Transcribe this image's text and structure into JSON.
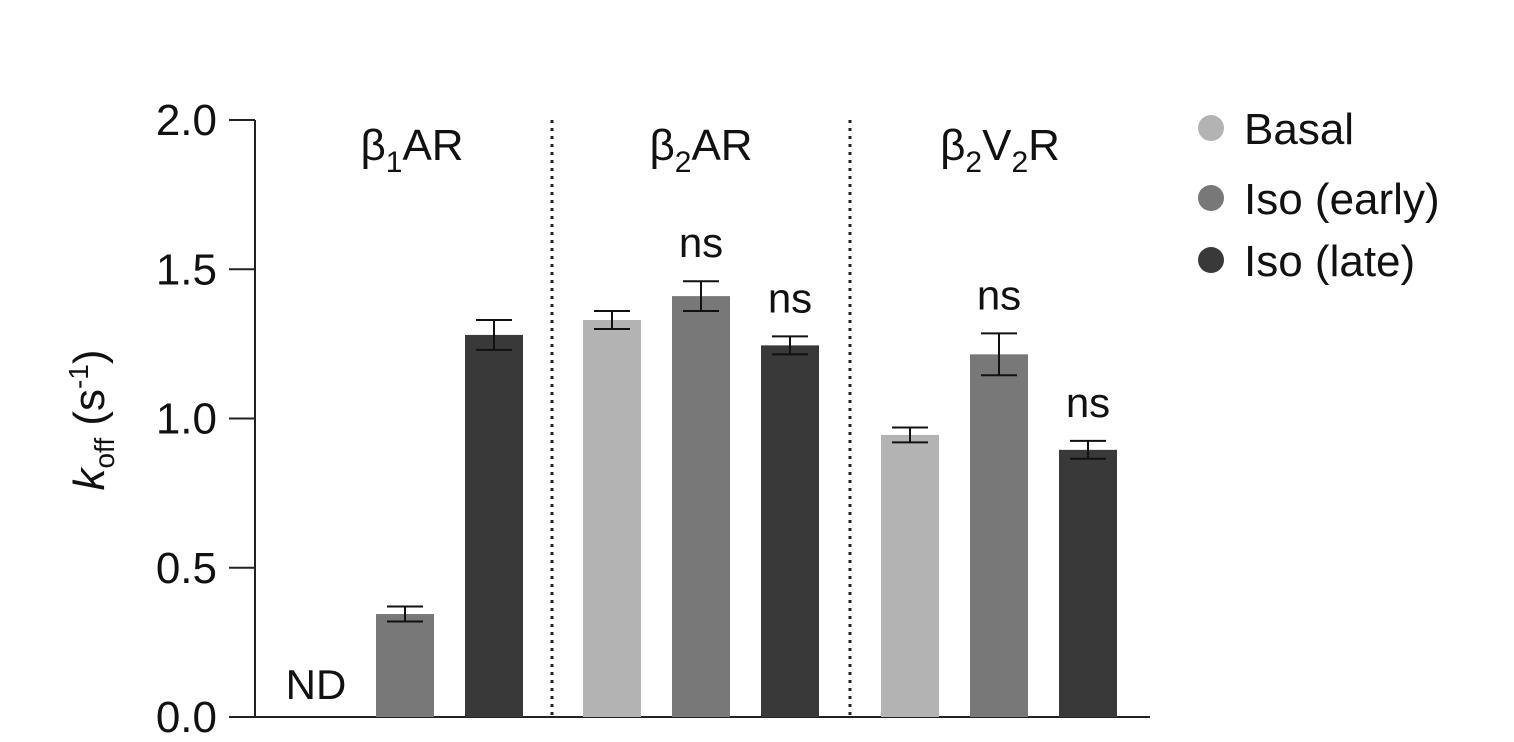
{
  "chart_data": {
    "type": "bar",
    "ylabel": {
      "main": "k",
      "sub": "off",
      "unit_open": " (s",
      "unit_sup": "-1",
      "unit_close": ")"
    },
    "ylim": [
      0,
      2.0
    ],
    "yticks": [
      "0.0",
      "0.5",
      "1.0",
      "1.5",
      "2.0"
    ],
    "groups": [
      {
        "label_pre": "β",
        "sub1": "1",
        "mid": "AR",
        "sub2": "",
        "post": ""
      },
      {
        "label_pre": "β",
        "sub1": "2",
        "mid": "AR",
        "sub2": "",
        "post": ""
      },
      {
        "label_pre": "β",
        "sub1": "2",
        "mid": "V",
        "sub2": "2",
        "post": "R"
      }
    ],
    "series": [
      {
        "name": "Basal",
        "color": "#b3b3b3",
        "values": [
          null,
          1.33,
          0.945
        ],
        "errors": [
          null,
          0.03,
          0.025
        ],
        "annotations": [
          "ND",
          "",
          ""
        ]
      },
      {
        "name": "Iso (early)",
        "color": "#787878",
        "values": [
          0.345,
          1.41,
          1.215
        ],
        "errors": [
          0.025,
          0.05,
          0.07
        ],
        "annotations": [
          "",
          "ns",
          "ns"
        ]
      },
      {
        "name": "Iso (late)",
        "color": "#393939",
        "values": [
          1.28,
          1.245,
          0.895
        ],
        "errors": [
          0.05,
          0.03,
          0.03
        ],
        "annotations": [
          "",
          "ns",
          "ns"
        ]
      }
    ],
    "legend_position": "right",
    "grid": false
  }
}
